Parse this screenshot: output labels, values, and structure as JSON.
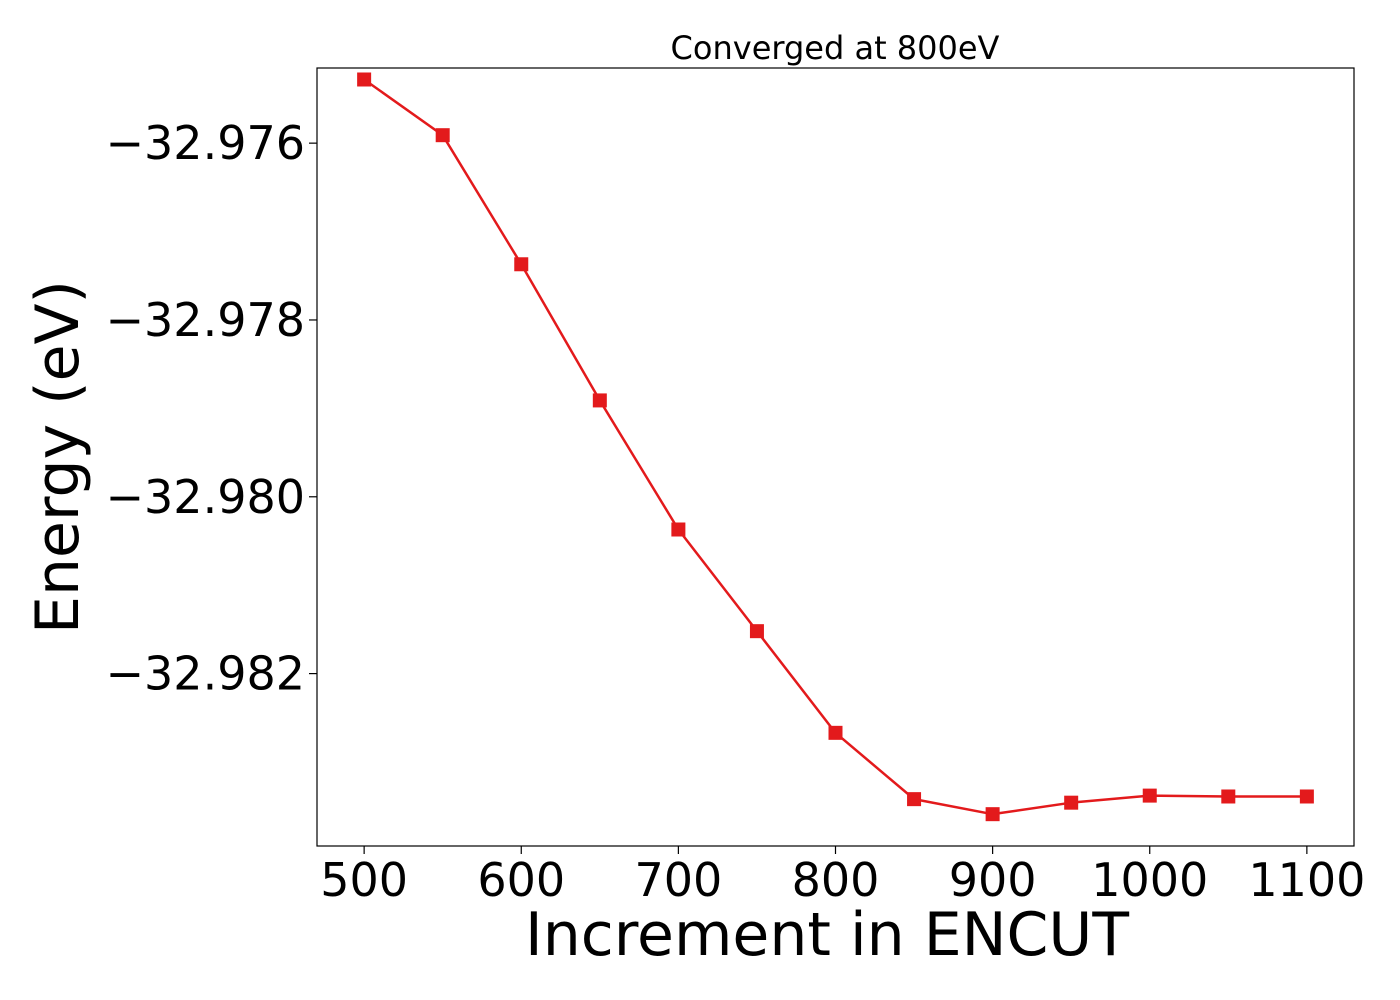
{
  "chart_data": {
    "type": "line",
    "title": "Converged at 800eV",
    "xlabel": "Increment in ENCUT",
    "ylabel": "Energy (eV)",
    "xlim": [
      470,
      1130
    ],
    "ylim": [
      -32.98395,
      -32.97515
    ],
    "x_ticks": [
      500,
      600,
      700,
      800,
      900,
      1000,
      1100
    ],
    "y_ticks": [
      -32.976,
      -32.978,
      -32.98,
      -32.982
    ],
    "y_tick_labels": [
      "−32.976",
      "−32.978",
      "−32.980",
      "−32.982"
    ],
    "grid": false,
    "legend": "none",
    "series": [
      {
        "color": "#e31a1c",
        "marker": "square",
        "x": [
          500,
          550,
          600,
          650,
          700,
          750,
          800,
          850,
          900,
          950,
          1000,
          1050,
          1100
        ],
        "y": [
          -32.97528,
          -32.97591,
          -32.97737,
          -32.97891,
          -32.98037,
          -32.98152,
          -32.98267,
          -32.98342,
          -32.98359,
          -32.98346,
          -32.98338,
          -32.98339,
          -32.98339
        ]
      }
    ]
  }
}
